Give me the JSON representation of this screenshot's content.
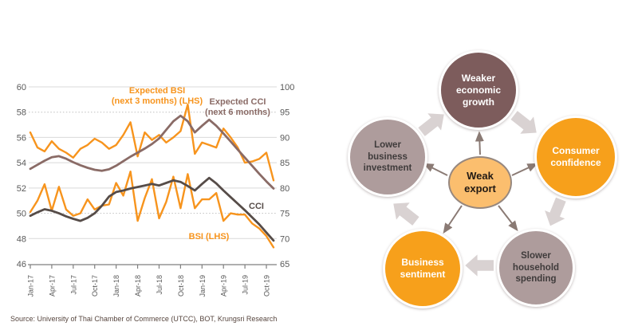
{
  "chart": {
    "source_note": "Source: University of Thai Chamber of Commerce (UTCC), BOT, Krungsri Research",
    "series_labels": {
      "expected_bsi": [
        "Expected BSI",
        "(next 3 months) (LHS)"
      ],
      "expected_cci": [
        "Expected CCI",
        "(next 6 months)"
      ],
      "bsi": "BSI (LHS)",
      "cci": "CCI"
    },
    "colors": {
      "orange": "#F7941D",
      "expected_cci_line": "#8A6B66",
      "cci_line": "#564C48",
      "gridline": "#D9D9D9",
      "gridline_dotted": "#BFBFBF",
      "axis": "#7F7F7F",
      "tick_text": "#595959"
    }
  },
  "chart_data": {
    "type": "line",
    "title": "",
    "xlabel": "",
    "ylabel_left": "",
    "ylabel_right": "",
    "grid": true,
    "legend_position": "inline-data-labels",
    "x": [
      "Jan-17",
      "Feb-17",
      "Mar-17",
      "Apr-17",
      "May-17",
      "Jun-17",
      "Jul-17",
      "Aug-17",
      "Sep-17",
      "Oct-17",
      "Nov-17",
      "Dec-17",
      "Jan-18",
      "Feb-18",
      "Mar-18",
      "Apr-18",
      "May-18",
      "Jun-18",
      "Jul-18",
      "Aug-18",
      "Sep-18",
      "Oct-18",
      "Nov-18",
      "Dec-18",
      "Jan-19",
      "Feb-19",
      "Mar-19",
      "Apr-19",
      "May-19",
      "Jun-19",
      "Jul-19",
      "Aug-19",
      "Sep-19",
      "Oct-19",
      "Nov-19"
    ],
    "x_tick_labels": [
      "Jan-17",
      "Apr-17",
      "Jul-17",
      "Oct-17",
      "Jan-18",
      "Apr-18",
      "Jul-18",
      "Oct-18",
      "Jan-19",
      "Apr-19",
      "Jul-19",
      "Oct-19"
    ],
    "left_axis": {
      "min": 46,
      "max": 60,
      "ticks": [
        60,
        58,
        56,
        54,
        52,
        50,
        48,
        46
      ],
      "dotted_levels": [
        58,
        50
      ]
    },
    "right_axis": {
      "min": 65,
      "max": 100,
      "ticks": [
        100,
        95,
        90,
        85,
        80,
        75,
        70,
        65
      ]
    },
    "series": [
      {
        "name": "Expected BSI (next 3 months) (LHS)",
        "axis": "left",
        "color": "#F7941D",
        "width": 2.4,
        "values": [
          56.4,
          55.2,
          54.9,
          55.7,
          55.1,
          54.8,
          54.4,
          55.1,
          55.4,
          55.9,
          55.6,
          55.1,
          55.4,
          56.2,
          57.2,
          54.5,
          56.4,
          55.8,
          56.2,
          55.6,
          56.0,
          56.5,
          58.6,
          54.7,
          55.6,
          55.4,
          55.2,
          56.7,
          56.0,
          55.2,
          54.0,
          54.1,
          54.3,
          54.8,
          52.6
        ]
      },
      {
        "name": "Expected CCI (next 6 months)",
        "axis": "right",
        "color": "#8A6B66",
        "width": 2.8,
        "values": [
          83.8,
          84.6,
          85.4,
          86.1,
          86.3,
          85.8,
          85.1,
          84.5,
          84.0,
          83.6,
          83.4,
          83.7,
          84.4,
          85.3,
          86.2,
          87.0,
          87.8,
          88.7,
          89.8,
          91.5,
          93.2,
          94.3,
          93.2,
          91.0,
          92.3,
          93.5,
          92.3,
          90.8,
          89.2,
          87.6,
          86.0,
          84.4,
          82.8,
          81.3,
          79.9
        ]
      },
      {
        "name": "BSI (LHS)",
        "axis": "left",
        "color": "#F7941D",
        "width": 2.4,
        "values": [
          50.1,
          51.0,
          52.3,
          50.2,
          52.1,
          50.3,
          49.8,
          50.0,
          51.1,
          50.3,
          50.6,
          50.7,
          52.4,
          51.4,
          53.3,
          49.4,
          51.2,
          52.7,
          49.6,
          50.9,
          52.9,
          50.4,
          53.1,
          50.4,
          51.1,
          51.1,
          51.6,
          49.4,
          50.0,
          49.9,
          49.9,
          49.2,
          48.8,
          48.2,
          47.3
        ]
      },
      {
        "name": "CCI",
        "axis": "right",
        "color": "#564C48",
        "width": 2.8,
        "values": [
          74.5,
          75.2,
          75.8,
          75.5,
          75.0,
          74.4,
          73.9,
          73.5,
          74.1,
          75.0,
          76.5,
          78.3,
          79.2,
          79.5,
          79.9,
          80.2,
          80.5,
          80.8,
          80.5,
          81.0,
          81.5,
          81.2,
          80.4,
          79.5,
          80.8,
          82.0,
          80.9,
          79.5,
          78.2,
          76.9,
          75.6,
          74.2,
          72.8,
          71.2,
          69.6
        ]
      }
    ]
  },
  "diagram": {
    "center": {
      "label": "Weak export",
      "fill": "#FBBE6E"
    },
    "nodes": [
      {
        "label": "Weaker economic growth",
        "fill": "#7D5C5C",
        "text_color": "#ffffff"
      },
      {
        "label": "Consumer confidence",
        "fill": "#F7A01B",
        "text_color": "#ffffff"
      },
      {
        "label": "Slower household spending",
        "fill": "#AE9C9C",
        "text_color": "#3F3B3B"
      },
      {
        "label": "Business sentiment",
        "fill": "#F7A01B",
        "text_color": "#ffffff"
      },
      {
        "label": "Lower business investment",
        "fill": "#AE9C9C",
        "text_color": "#3F3B3B"
      }
    ],
    "cycle_arrow_color": "#D9D2D2",
    "radial_arrow_color": "#8A7A74"
  }
}
